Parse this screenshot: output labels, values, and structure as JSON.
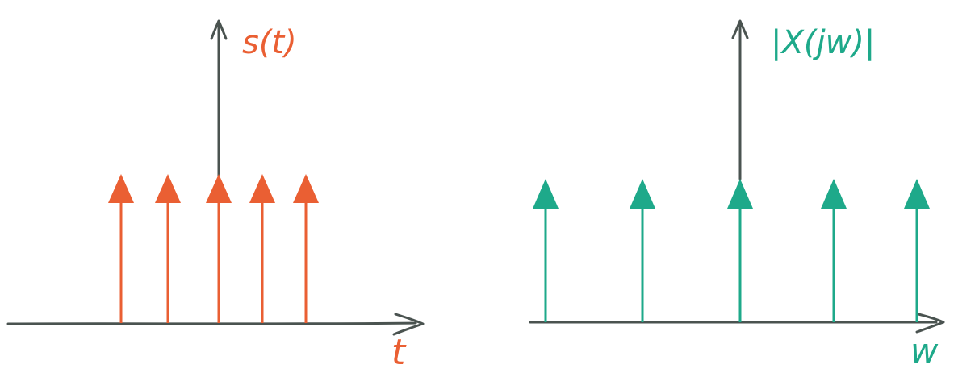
{
  "colors": {
    "axis": "#4a5350",
    "left_accent": "#ea5f33",
    "right_accent": "#1ea98a",
    "background": "#ffffff"
  },
  "left_panel": {
    "y_label": "s(t)",
    "x_label": "t",
    "impulse_count": 5
  },
  "right_panel": {
    "y_label": "|X(jw)|",
    "x_label": "w",
    "impulse_count": 5
  }
}
